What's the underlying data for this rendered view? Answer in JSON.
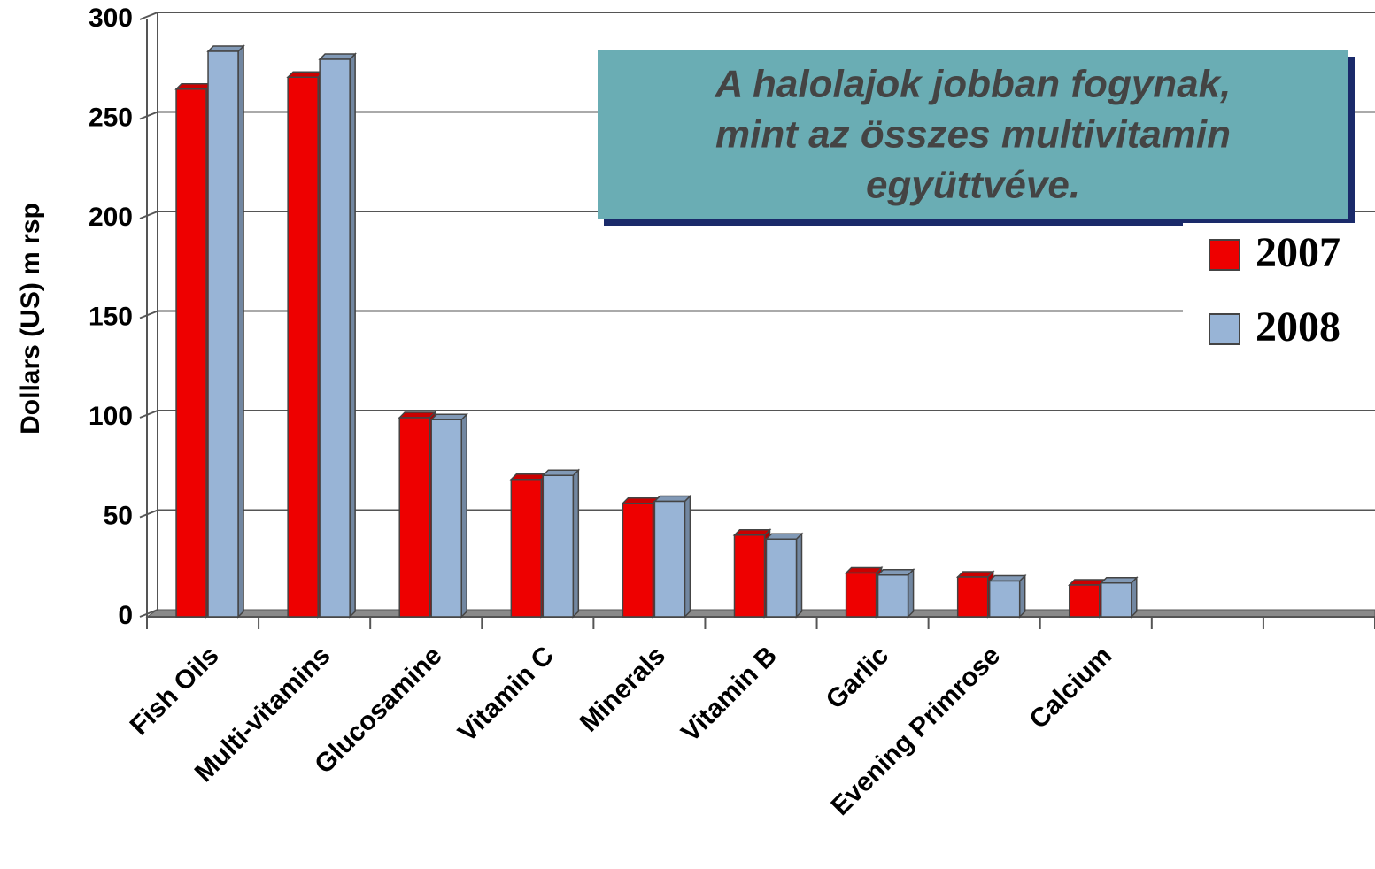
{
  "chart_data": {
    "type": "bar",
    "ylabel": "Dollars (US) m rsp",
    "annotation": [
      "A halolajok jobban fogynak,",
      "mint az összes multivitamin",
      "együttvéve."
    ],
    "categories": [
      "Fish Oils",
      "Multi-vitamins",
      "Glucosamine",
      "Vitamin C",
      "Minerals",
      "Vitamin B",
      "Garlic",
      "Evening Primrose",
      "Calcium",
      null,
      null
    ],
    "series": [
      {
        "name": "2007",
        "color": "#ee0000",
        "values": [
          265,
          271,
          100,
          69,
          57,
          41,
          22,
          20,
          16,
          null,
          null
        ]
      },
      {
        "name": "2008",
        "color": "#98b4d6",
        "values": [
          284,
          280,
          99,
          71,
          58,
          39,
          21,
          18,
          17,
          null,
          null
        ]
      }
    ],
    "ylim": [
      0,
      300
    ],
    "yticks": [
      0,
      50,
      100,
      150,
      200,
      250,
      300
    ],
    "grid": true,
    "legend": "right"
  }
}
